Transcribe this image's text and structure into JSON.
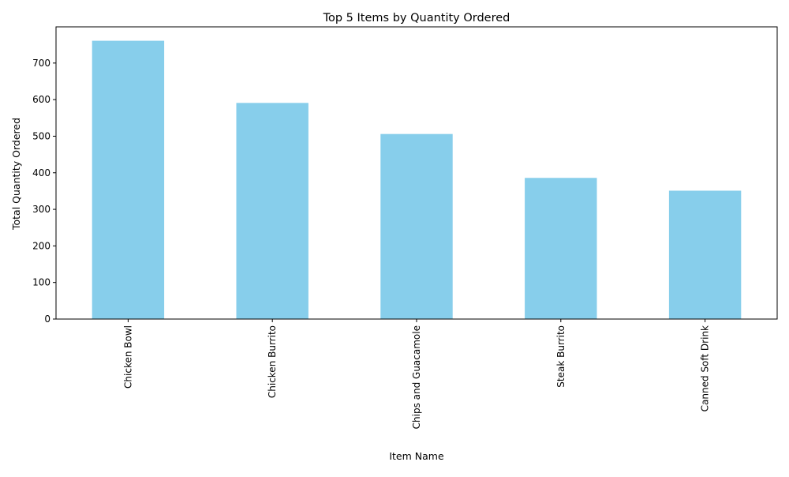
{
  "chart_data": {
    "type": "bar",
    "title": "Top 5 Items by Quantity Ordered",
    "xlabel": "Item Name",
    "ylabel": "Total Quantity Ordered",
    "categories": [
      "Chicken Bowl",
      "Chicken Burrito",
      "Chips and Guacamole",
      "Steak Burrito",
      "Canned Soft Drink"
    ],
    "values": [
      761,
      591,
      506,
      386,
      351
    ],
    "ylim": [
      0,
      799
    ],
    "yticks": [
      0,
      100,
      200,
      300,
      400,
      500,
      600,
      700
    ],
    "bar_color": "#87ceeb",
    "grid": false,
    "legend": "none"
  }
}
